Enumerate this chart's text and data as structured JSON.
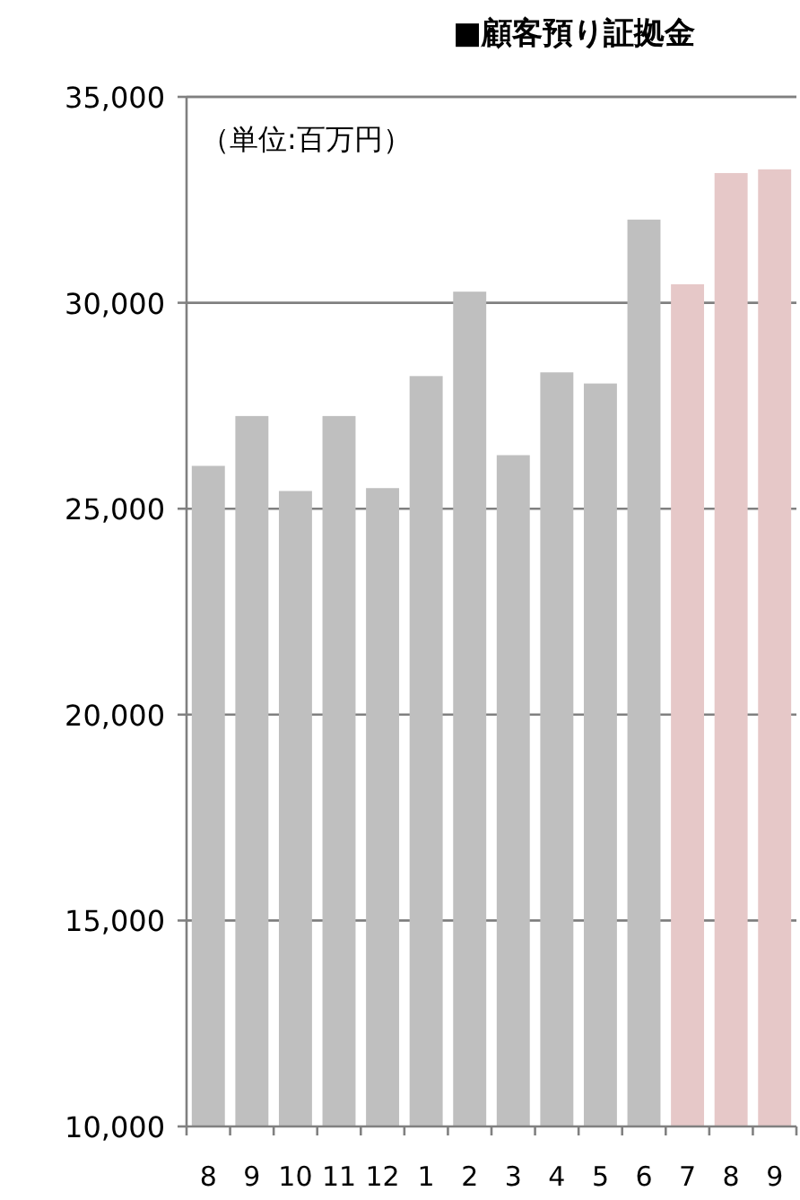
{
  "chart_data": {
    "type": "bar",
    "title": "■顧客預り証拠金",
    "annotations": [
      "（単位:百万円）"
    ],
    "categories": [
      "8",
      "9",
      "10",
      "11",
      "12",
      "1",
      "2",
      "3",
      "4",
      "5",
      "6",
      "7",
      "8",
      "9"
    ],
    "values": [
      26040,
      27250,
      25430,
      27250,
      25500,
      28220,
      30270,
      26300,
      28310,
      28040,
      32020,
      30450,
      33150,
      33240
    ],
    "colors": [
      "#bfbfbf",
      "#bfbfbf",
      "#bfbfbf",
      "#bfbfbf",
      "#bfbfbf",
      "#bfbfbf",
      "#bfbfbf",
      "#bfbfbf",
      "#bfbfbf",
      "#bfbfbf",
      "#bfbfbf",
      "#e6c8c8",
      "#e6c8c8",
      "#e6c8c8"
    ],
    "ylim": [
      10000,
      35000
    ],
    "yticks": [
      {
        "value": 10000,
        "label": "10,000"
      },
      {
        "value": 15000,
        "label": "15,000"
      },
      {
        "value": 20000,
        "label": "20,000"
      },
      {
        "value": 25000,
        "label": "25,000"
      },
      {
        "value": 30000,
        "label": "30,000"
      },
      {
        "value": 35000,
        "label": "35,000"
      }
    ],
    "grid": "y"
  }
}
